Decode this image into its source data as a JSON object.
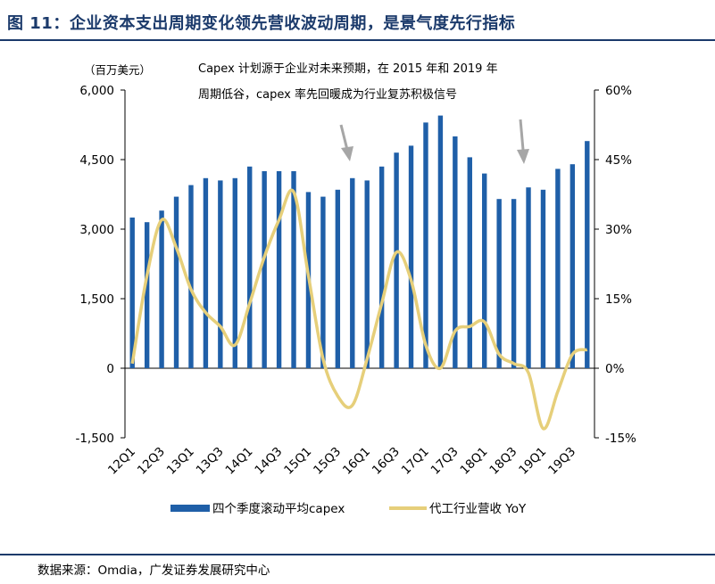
{
  "header": {
    "title": "图 11：企业资本支出周期变化领先营收波动周期，是景气度先行指标"
  },
  "footer": {
    "source": "数据来源：Omdia，广发证券发展研究中心"
  },
  "chart_data": {
    "type": "bar",
    "unit_label": "（百万美元）",
    "annotation": {
      "line1": "Capex 计划源于企业对未来预期，在 2015 年和 2019 年",
      "line2": "周期低谷，capex 率先回暖成为行业复苏积极信号"
    },
    "x_tick_labels": [
      "12Q1",
      "12Q3",
      "13Q1",
      "13Q3",
      "14Q1",
      "14Q3",
      "15Q1",
      "15Q3",
      "16Q1",
      "16Q3",
      "17Q1",
      "17Q3",
      "18Q1",
      "18Q3",
      "19Q1",
      "19Q3"
    ],
    "categories": [
      "12Q1",
      "12Q2",
      "12Q3",
      "12Q4",
      "13Q1",
      "13Q2",
      "13Q3",
      "13Q4",
      "14Q1",
      "14Q2",
      "14Q3",
      "14Q4",
      "15Q1",
      "15Q2",
      "15Q3",
      "15Q4",
      "16Q1",
      "16Q2",
      "16Q3",
      "16Q4",
      "17Q1",
      "17Q2",
      "17Q3",
      "17Q4",
      "18Q1",
      "18Q2",
      "18Q3",
      "18Q4",
      "19Q1",
      "19Q2",
      "19Q3",
      "19Q4"
    ],
    "y_left": {
      "ylim": [
        -1500,
        6000
      ],
      "ticks": [
        "-1,500",
        "0",
        "1,500",
        "3,000",
        "4,500",
        "6,000"
      ],
      "tick_values": [
        -1500,
        0,
        1500,
        3000,
        4500,
        6000
      ]
    },
    "y_right": {
      "ylim": [
        -15,
        60
      ],
      "ticks": [
        "-15%",
        "0%",
        "15%",
        "30%",
        "45%",
        "60%"
      ],
      "tick_values": [
        -15,
        0,
        15,
        30,
        45,
        60
      ]
    },
    "series": [
      {
        "name": "四个季度滚动平均capex",
        "type": "bar",
        "axis": "left",
        "color": "#1f5fa8",
        "values": [
          3250,
          3150,
          3400,
          3700,
          3950,
          4100,
          4050,
          4100,
          4350,
          4250,
          4250,
          4250,
          3800,
          3700,
          3850,
          4100,
          4050,
          4350,
          4650,
          4800,
          5300,
          5450,
          5000,
          4550,
          4200,
          3650,
          3650,
          3900,
          3850,
          4300,
          4400,
          4900
        ]
      },
      {
        "name": "代工行业营收 YoY",
        "type": "line",
        "axis": "right",
        "color": "#e6cf7a",
        "values": [
          1,
          20,
          32,
          26,
          17,
          12,
          9,
          5,
          14,
          24,
          32,
          38,
          20,
          2,
          -6,
          -8,
          2,
          14,
          25,
          19,
          5,
          0,
          8,
          9,
          10,
          3,
          1,
          -1,
          -13,
          -5,
          3,
          4
        ]
      }
    ],
    "legend": {
      "position": "bottom-center"
    },
    "grid": false
  }
}
